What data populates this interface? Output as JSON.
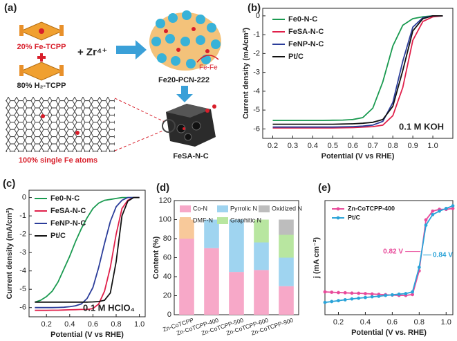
{
  "schematic": {
    "label": "(a)",
    "fe_tcpp": "20% Fe-TCPP",
    "h2_tcpp": "80% H₂-TCPP",
    "zr": "+ Zr⁴⁺",
    "mof": "Fe20-PCN-222",
    "fe_fe": "Fe-Fe",
    "single_atoms": "100% single Fe atoms",
    "product": "FeSA-N-C"
  },
  "chart_data": [
    {
      "type": "line",
      "label": "(b)",
      "x_label": "Potential (V vs RHE)",
      "y_label": "Current density (mA/cm²)",
      "annotation": "0.1 M KOH",
      "xlim": [
        0.15,
        1.1
      ],
      "ylim": [
        -6.5,
        0.4
      ],
      "xticks": [
        0.2,
        0.3,
        0.4,
        0.5,
        0.6,
        0.7,
        0.8,
        0.9,
        {
          "value": 1,
          "label": "1.0"
        }
      ],
      "yticks": [
        0,
        -1,
        -2,
        -3,
        -4,
        -5,
        -6
      ],
      "x": [
        0.2,
        0.25,
        0.3,
        0.35,
        0.4,
        0.45,
        0.5,
        0.55,
        0.6,
        0.65,
        0.7,
        0.75,
        0.8,
        0.85,
        0.9,
        0.95,
        1.0,
        1.05
      ],
      "series": [
        {
          "name": "Fe0-N-C",
          "color": "#1a9a50",
          "values": [
            -5.55,
            -5.55,
            -5.55,
            -5.55,
            -5.55,
            -5.55,
            -5.54,
            -5.53,
            -5.5,
            -5.4,
            -4.9,
            -3.5,
            -1.6,
            -0.5,
            -0.15,
            -0.05,
            0,
            0
          ]
        },
        {
          "name": "FeSA-N-C",
          "color": "#e0204a",
          "values": [
            -5.95,
            -5.95,
            -5.95,
            -5.95,
            -5.95,
            -5.95,
            -5.95,
            -5.94,
            -5.93,
            -5.9,
            -5.88,
            -5.8,
            -5.3,
            -3.8,
            -1.3,
            -0.3,
            -0.05,
            0
          ]
        },
        {
          "name": "FeNP-N-C",
          "color": "#2b3d9a",
          "values": [
            -5.9,
            -5.9,
            -5.9,
            -5.9,
            -5.9,
            -5.9,
            -5.9,
            -5.89,
            -5.88,
            -5.85,
            -5.8,
            -5.6,
            -4.6,
            -2.4,
            -0.6,
            -0.1,
            0,
            0
          ]
        },
        {
          "name": "Pt/C",
          "color": "#111111",
          "values": [
            -5.75,
            -5.75,
            -5.75,
            -5.75,
            -5.75,
            -5.75,
            -5.75,
            -5.74,
            -5.73,
            -5.7,
            -5.65,
            -5.5,
            -4.8,
            -2.9,
            -0.8,
            -0.15,
            0,
            0
          ]
        }
      ]
    },
    {
      "type": "line",
      "label": "(c)",
      "x_label": "Potential (V vs RHE)",
      "y_label": "Current density (mA/cm²)",
      "annotation": "0.1 M HClO₄",
      "xlim": [
        0.05,
        1.05
      ],
      "ylim": [
        -6.5,
        0.4
      ],
      "xticks": [
        0.2,
        0.4,
        0.6,
        0.8,
        {
          "value": 1,
          "label": "1.0"
        }
      ],
      "yticks": [
        0,
        -1,
        -2,
        -3,
        -4,
        -5,
        -6
      ],
      "x": [
        0.1,
        0.15,
        0.2,
        0.25,
        0.3,
        0.35,
        0.4,
        0.45,
        0.5,
        0.55,
        0.6,
        0.65,
        0.7,
        0.75,
        0.8,
        0.85,
        0.9,
        0.95,
        1.0
      ],
      "series": [
        {
          "name": "Fe0-N-C",
          "color": "#1a9a50",
          "values": [
            -5.7,
            -5.6,
            -5.4,
            -5.1,
            -4.6,
            -3.9,
            -3.2,
            -2.4,
            -1.7,
            -1.1,
            -0.6,
            -0.3,
            -0.15,
            -0.1,
            -0.05,
            0,
            0,
            0,
            0
          ]
        },
        {
          "name": "FeSA-N-C",
          "color": "#e0204a",
          "values": [
            -6.15,
            -6.15,
            -6.15,
            -6.14,
            -6.14,
            -6.13,
            -6.12,
            -6.11,
            -6.1,
            -6.1,
            -6.05,
            -5.8,
            -5.1,
            -3.8,
            -2.0,
            -0.6,
            -0.15,
            0,
            0
          ]
        },
        {
          "name": "FeNP-N-C",
          "color": "#2b3d9a",
          "values": [
            -6.0,
            -6.0,
            -6.0,
            -6.0,
            -5.99,
            -5.98,
            -5.95,
            -5.9,
            -5.8,
            -5.5,
            -4.9,
            -3.8,
            -2.5,
            -1.3,
            -0.5,
            -0.15,
            0,
            0,
            0
          ]
        },
        {
          "name": "Pt/C",
          "color": "#111111",
          "values": [
            -5.7,
            -5.7,
            -5.7,
            -5.7,
            -5.7,
            -5.7,
            -5.7,
            -5.7,
            -5.7,
            -5.7,
            -5.69,
            -5.67,
            -5.6,
            -5.2,
            -3.5,
            -1.0,
            -0.2,
            0,
            0
          ]
        }
      ]
    },
    {
      "type": "bar",
      "stacked": true,
      "label": "(d)",
      "y_label": "Content (%)",
      "ylim": [
        0,
        120
      ],
      "yticks": [
        0,
        20,
        40,
        60,
        80,
        100,
        120
      ],
      "categories": [
        "Zn-CoTCPP",
        "Zn-CoTCPP-400",
        "Zn-CoTCPP-500",
        "Zn-CoTCPP-600",
        "Zn-CoTCPP-900"
      ],
      "series": [
        {
          "name": "Co-N",
          "color": "#f7a8c8",
          "values": [
            80,
            70,
            45,
            47,
            30
          ]
        },
        {
          "name": "DMF-N",
          "color": "#f8c99a",
          "values": [
            20,
            0,
            0,
            0,
            0
          ]
        },
        {
          "name": "Pyrrolic N",
          "color": "#9fd4f0",
          "values": [
            0,
            30,
            55,
            29,
            30
          ]
        },
        {
          "name": "Graphitic N",
          "color": "#b8e6a0",
          "values": [
            0,
            0,
            0,
            24,
            24
          ]
        },
        {
          "name": "Oxidized N",
          "color": "#bdbdbd",
          "values": [
            0,
            0,
            0,
            0,
            16
          ]
        }
      ]
    },
    {
      "type": "line",
      "markers": true,
      "label": "(e)",
      "x_label": "Potential (V vs. RHE)",
      "y_label": "j (mA cm⁻²)",
      "annotations": [
        "0.82 V",
        "0.84 V"
      ],
      "xlim": [
        0.1,
        1.05
      ],
      "ylim": [
        -6,
        0.5
      ],
      "xticks": [
        0.2,
        0.4,
        0.6,
        0.8,
        {
          "value": 1,
          "label": "1.0"
        }
      ],
      "x": [
        0.1,
        0.15,
        0.2,
        0.25,
        0.3,
        0.35,
        0.4,
        0.45,
        0.5,
        0.55,
        0.6,
        0.65,
        0.7,
        0.75,
        0.8,
        0.85,
        0.9,
        0.95,
        1.0,
        1.05
      ],
      "series": [
        {
          "name": "Zn-CoTCPP-400",
          "color": "#e84a9a",
          "values": [
            -4.7,
            -4.72,
            -4.74,
            -4.75,
            -4.77,
            -4.78,
            -4.8,
            -4.82,
            -4.84,
            -4.86,
            -4.88,
            -4.9,
            -4.9,
            -4.85,
            -3.5,
            -0.6,
            -0.1,
            0,
            0,
            0.05
          ]
        },
        {
          "name": "Pt/C",
          "color": "#2aa3d8",
          "values": [
            -5.3,
            -5.25,
            -5.2,
            -5.15,
            -5.1,
            -5.06,
            -5.02,
            -4.98,
            -4.95,
            -4.9,
            -4.87,
            -4.83,
            -4.8,
            -4.7,
            -3.3,
            -0.9,
            -0.3,
            -0.1,
            0.05,
            0.2
          ]
        }
      ]
    }
  ]
}
